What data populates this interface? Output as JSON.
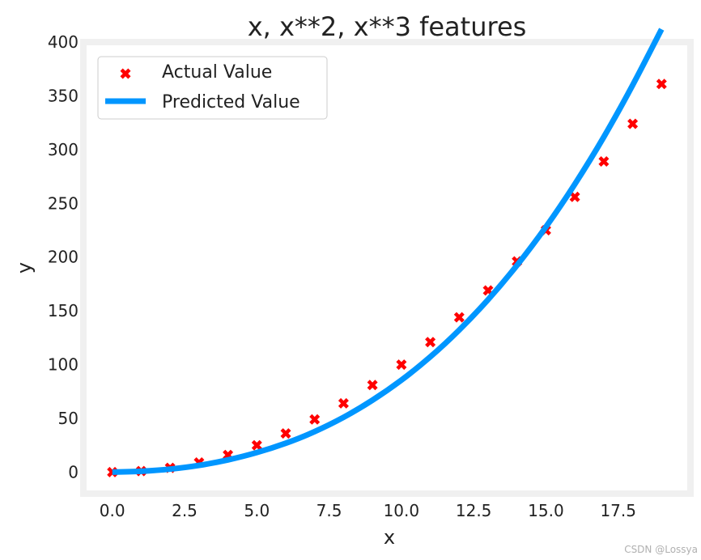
{
  "chart_data": {
    "type": "scatter",
    "title": "x, x**2, x**3 features",
    "xlabel": "x",
    "ylabel": "y",
    "xlim": [
      -1,
      20
    ],
    "ylim": [
      -20,
      400
    ],
    "x_ticks": [
      "0.0",
      "2.5",
      "5.0",
      "7.5",
      "10.0",
      "12.5",
      "15.0",
      "17.5"
    ],
    "x_tick_values": [
      0,
      2.5,
      5,
      7.5,
      10,
      12.5,
      15,
      17.5
    ],
    "y_ticks": [
      "0",
      "50",
      "100",
      "150",
      "200",
      "250",
      "300",
      "350",
      "400"
    ],
    "y_tick_values": [
      0,
      50,
      100,
      150,
      200,
      250,
      300,
      350,
      400
    ],
    "grid": false,
    "legend": {
      "placement": "top-left",
      "entries": [
        "Actual Value",
        "Predicted Value"
      ]
    },
    "series": [
      {
        "name": "Actual Value",
        "kind": "scatter",
        "marker": "X",
        "color": "#ff0000",
        "x": [
          0,
          1,
          2,
          3,
          4,
          5,
          6,
          7,
          8,
          9,
          10,
          11,
          12,
          13,
          14,
          15,
          16,
          17,
          18,
          19
        ],
        "y": [
          0,
          1,
          4,
          9,
          16,
          25,
          36,
          49,
          64,
          81,
          100,
          121,
          144,
          169,
          196,
          225,
          256,
          289,
          324,
          361
        ]
      },
      {
        "name": "Predicted Value",
        "kind": "line",
        "color": "#0096ff",
        "x": [
          0,
          1,
          2,
          3,
          4,
          5,
          6,
          7,
          8,
          9,
          10,
          11,
          12,
          13,
          14,
          15,
          16,
          17,
          18,
          19
        ],
        "y": [
          0.0,
          0.8,
          2.8,
          6.3,
          11.4,
          18.2,
          26.9,
          37.7,
          51.0,
          66.9,
          85.6,
          107.3,
          132.2,
          160.5,
          192.4,
          228.1,
          267.8,
          311.7,
          360.0,
          412.0
        ]
      }
    ]
  },
  "watermark": "CSDN @Lossya"
}
